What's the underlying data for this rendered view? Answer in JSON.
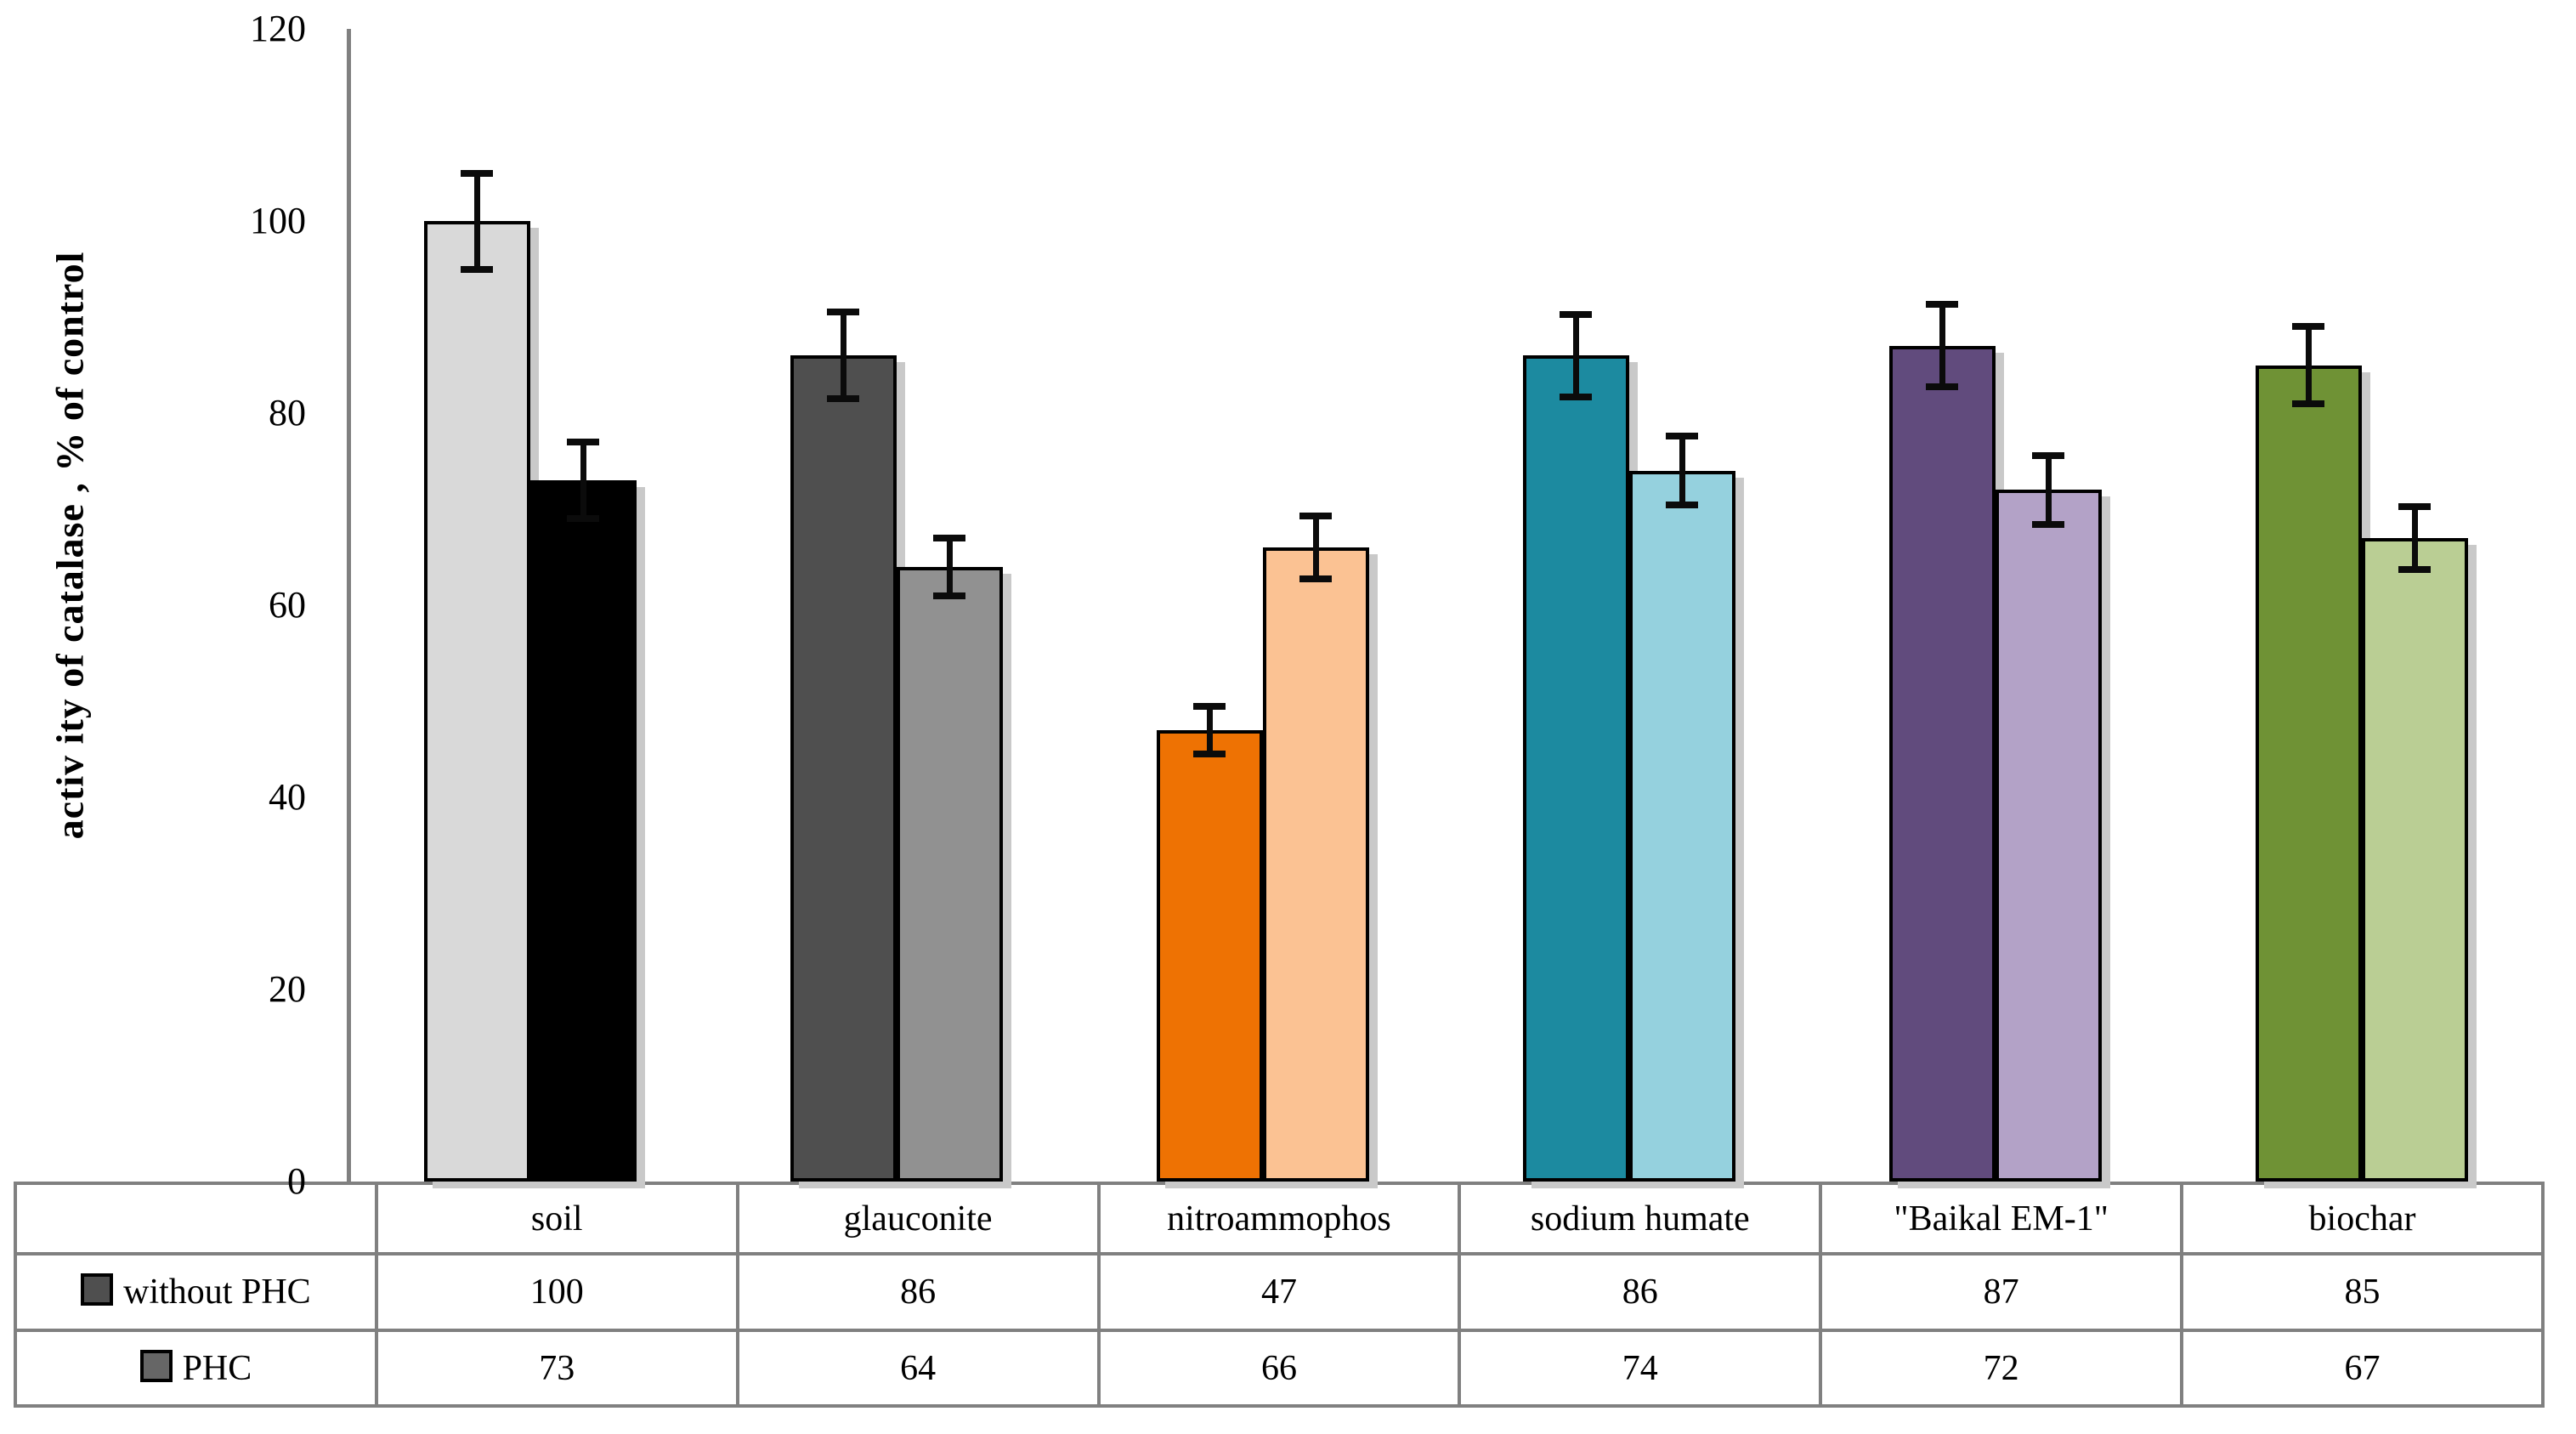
{
  "chart_data": {
    "type": "bar",
    "title": "",
    "ylabel": "activ ity of catalase , % of control",
    "xlabel": "",
    "ylim": [
      0,
      120
    ],
    "yticks": [
      0,
      20,
      40,
      60,
      80,
      100,
      120
    ],
    "grid": false,
    "legend_position": "table-left",
    "categories": [
      "soil",
      "glauconite",
      "nitroammophos",
      "sodium humate",
      "\"Baikal EM-1\"",
      "biochar"
    ],
    "series": [
      {
        "name": "without PHC",
        "values": [
          100,
          86,
          47,
          86,
          87,
          85
        ],
        "errors": [
          5,
          4.5,
          2.5,
          4.3,
          4.3,
          4
        ],
        "colors": [
          "#d9d9d9",
          "#4f4f4f",
          "#ee7203",
          "#1c8aa0",
          "#614b7d",
          "#6f9235"
        ]
      },
      {
        "name": "PHC",
        "values": [
          73,
          64,
          66,
          74,
          72,
          67
        ],
        "errors": [
          4,
          3,
          3.3,
          3.6,
          3.6,
          3.3
        ],
        "colors": [
          "#000000",
          "#919191",
          "#fbc293",
          "#95d1de",
          "#b3a2c7",
          "#bace94"
        ]
      }
    ],
    "legend_swatches": [
      "#4f4f4f",
      "#666666"
    ],
    "axis_color": "#808080",
    "error_bar_color": "#0b0b0b"
  }
}
